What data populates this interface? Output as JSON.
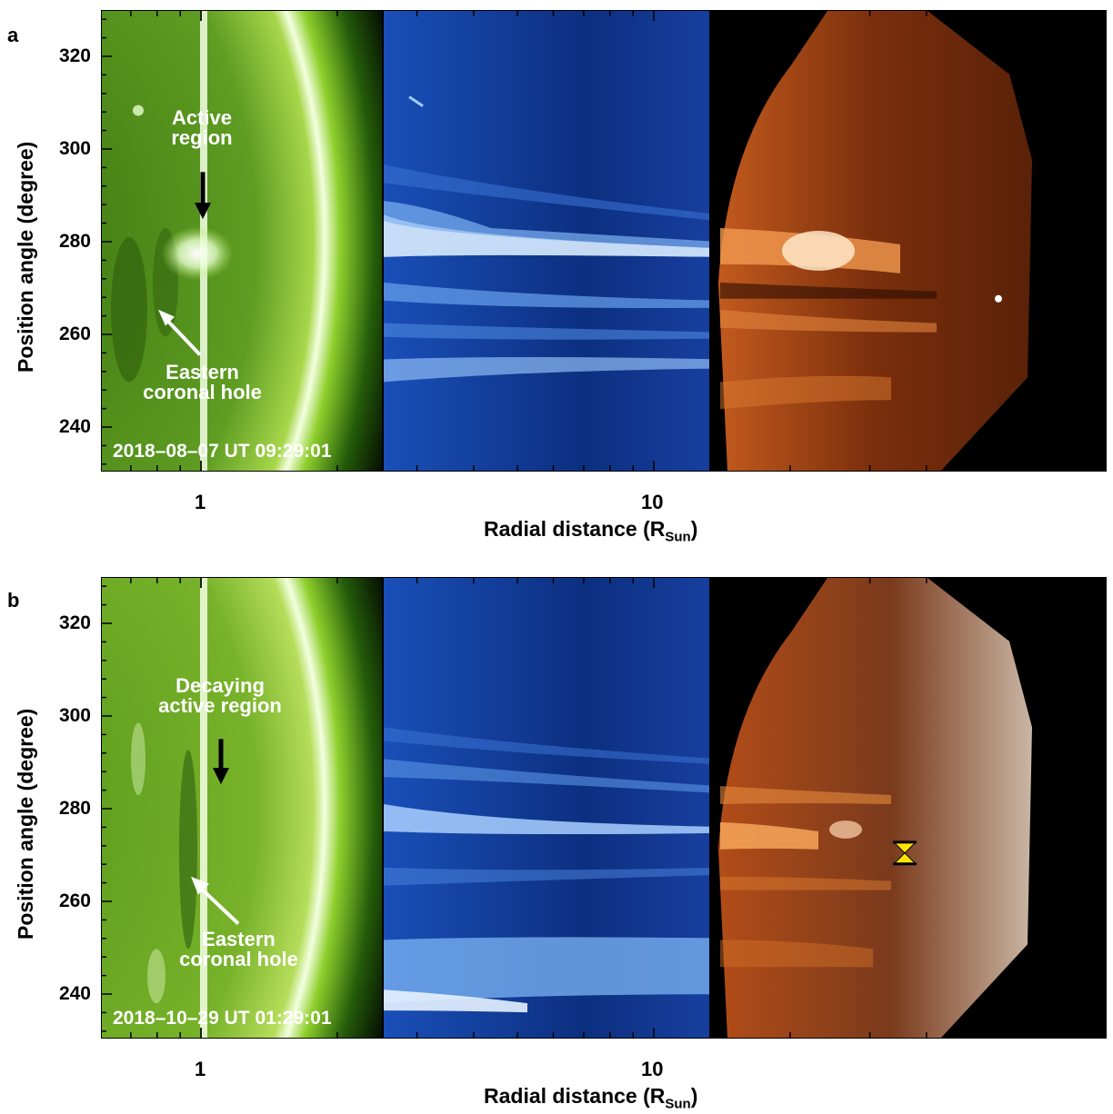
{
  "panels": [
    {
      "letter": "a",
      "annotations": {
        "upper": "Active\nregion",
        "lower": "Eastern\ncoronal hole"
      },
      "timestamp": "2018–08–07 UT 09:29:01"
    },
    {
      "letter": "b",
      "annotations": {
        "upper": "Decaying\nactive region",
        "lower": "Eastern\ncoronal hole"
      },
      "timestamp": "2018–10–29 UT 01:29:01"
    }
  ],
  "axes": {
    "y_label": "Position angle (degree)",
    "y_ticks": [
      "320",
      "300",
      "280",
      "260",
      "240"
    ],
    "x_label_main": "Radial distance (R",
    "x_label_sub": "Sun",
    "x_label_close": ")",
    "x_ticks": [
      "1",
      "10"
    ]
  },
  "colors": {
    "euv": "#7fbf2a",
    "coronagraph": "#2f6fd6",
    "heliospheric": "#b44a16",
    "marker": "#ffe600"
  }
}
